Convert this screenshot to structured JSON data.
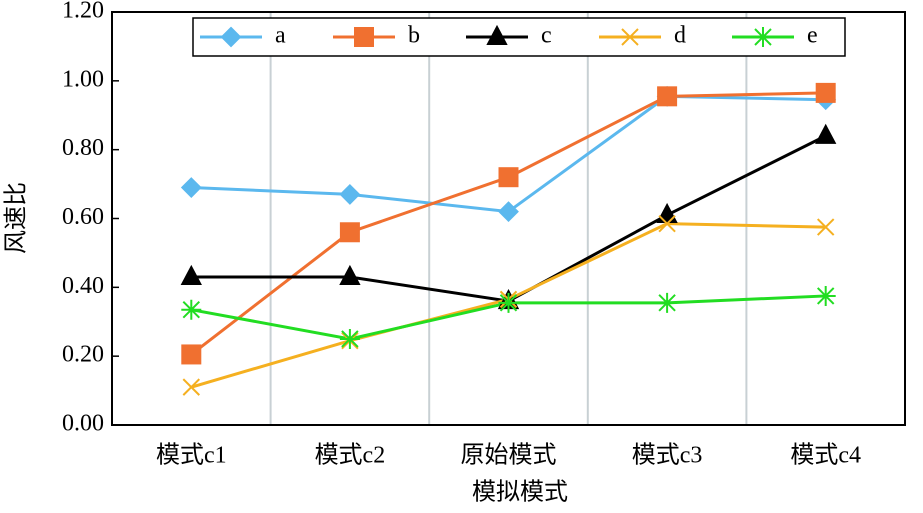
{
  "chart_data": {
    "type": "line",
    "x_label": "模拟模式",
    "y_label": "风速比",
    "categories": [
      "模式c1",
      "模式c2",
      "原始模式",
      "模式c3",
      "模式c4"
    ],
    "ylim": [
      0,
      1.2
    ],
    "yticks": [
      {
        "value": 0,
        "label": "0.00"
      },
      {
        "value": 0.2,
        "label": "0.20"
      },
      {
        "value": 0.4,
        "label": "0.40"
      },
      {
        "value": 0.6,
        "label": "0.60"
      },
      {
        "value": 0.8,
        "label": "0.80"
      },
      {
        "value": 1,
        "label": "1.00"
      },
      {
        "value": 1.2,
        "label": "1.20"
      }
    ],
    "series": [
      {
        "name": "a",
        "color": "#5bb8ee",
        "marker": "diamond",
        "values": [
          0.69,
          0.67,
          0.62,
          0.955,
          0.945
        ]
      },
      {
        "name": "b",
        "color": "#f07030",
        "marker": "square",
        "values": [
          0.205,
          0.56,
          0.72,
          0.955,
          0.965
        ]
      },
      {
        "name": "c",
        "color": "#000000",
        "marker": "triangle",
        "values": [
          0.43,
          0.43,
          0.36,
          0.61,
          0.84
        ]
      },
      {
        "name": "d",
        "color": "#f5b020",
        "marker": "x",
        "values": [
          0.11,
          0.245,
          0.365,
          0.585,
          0.575
        ]
      },
      {
        "name": "e",
        "color": "#22dd22",
        "marker": "asterisk",
        "values": [
          0.335,
          0.25,
          0.355,
          0.355,
          0.375
        ]
      }
    ]
  }
}
